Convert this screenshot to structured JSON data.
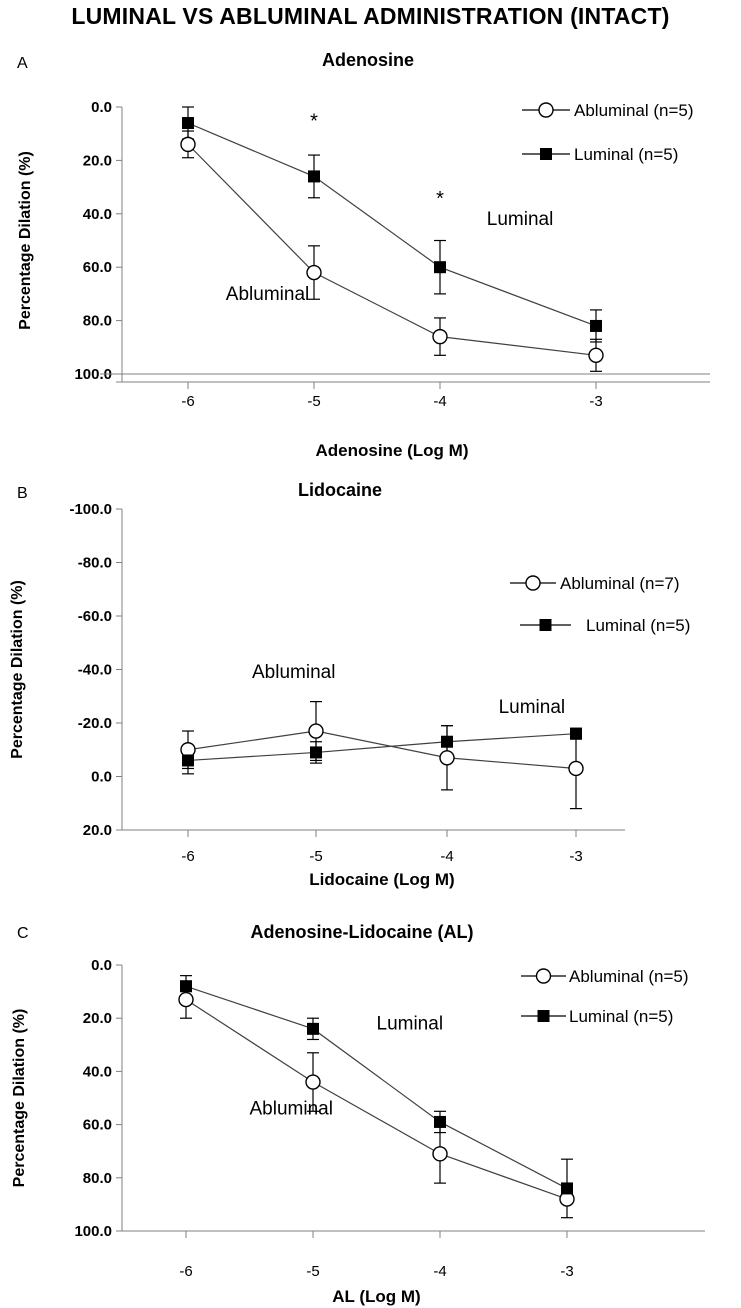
{
  "page_title": "LUMINAL VS ABLUMINAL ADMINISTRATION (INTACT)",
  "colors": {
    "line": "#404040",
    "axis": "#000000",
    "marker_fill_luminal": "#000000",
    "marker_fill_abluminal": "#ffffff"
  },
  "chart_data": [
    {
      "panel_label": "A",
      "type": "line",
      "title": "Adenosine",
      "xlabel": "Adenosine (Log M)",
      "ylabel": "Percentage Dilation (%)",
      "x": [
        -6,
        -5,
        -4,
        -3
      ],
      "x_tick_labels": [
        "-6",
        "-5",
        "-4",
        "-3"
      ],
      "y_tick_labels": [
        "0.0",
        "20.0",
        "40.0",
        "60.0",
        "80.0",
        "100.0"
      ],
      "ylim": [
        0,
        100
      ],
      "y_inverted": true,
      "legend_position": "top-right",
      "series": [
        {
          "name": "Abluminal (n=5)",
          "marker": "open-circle",
          "values": [
            14,
            62,
            86,
            93
          ],
          "errors": [
            5,
            10,
            7,
            6
          ]
        },
        {
          "name": "Luminal (n=5)",
          "marker": "filled-square",
          "values": [
            6,
            26,
            60,
            82
          ],
          "errors": [
            6,
            8,
            10,
            6
          ]
        }
      ],
      "annotations": [
        {
          "text": "*",
          "x": -5,
          "y": 4
        },
        {
          "text": "*",
          "x": -4,
          "y": 33
        },
        {
          "text": "Luminal",
          "x": -3.7,
          "y": 42
        },
        {
          "text": "Abluminal",
          "x": -5.7,
          "y": 70
        }
      ]
    },
    {
      "panel_label": "B",
      "type": "line",
      "title": "Lidocaine",
      "xlabel": "Lidocaine (Log M)",
      "ylabel": "Percentage Dilation (%)",
      "x": [
        -6,
        -5,
        -4,
        -3
      ],
      "x_tick_labels": [
        "-6",
        "-5",
        "-4",
        "-3"
      ],
      "y_tick_labels": [
        "-100.0",
        "-80.0",
        "-60.0",
        "-40.0",
        "-20.0",
        "0.0",
        "20.0"
      ],
      "ylim": [
        -100,
        20
      ],
      "y_inverted": false,
      "legend_position": "right",
      "series": [
        {
          "name": "Abluminal (n=7)",
          "marker": "open-circle",
          "values": [
            -10,
            -17,
            -7,
            -3
          ],
          "errors": [
            7,
            11,
            12,
            15
          ]
        },
        {
          "name": "Luminal (n=5)",
          "marker": "filled-square",
          "values": [
            -6,
            -9,
            -13,
            -16
          ],
          "errors": [
            5,
            4,
            6,
            2
          ]
        }
      ],
      "annotations": [
        {
          "text": "Abluminal",
          "x": -5.5,
          "y": -39
        },
        {
          "text": "Luminal",
          "x": -3.6,
          "y": -26
        }
      ]
    },
    {
      "panel_label": "C",
      "type": "line",
      "title": "Adenosine-Lidocaine (AL)",
      "xlabel": "AL (Log M)",
      "ylabel": "Percentage Dilation (%)",
      "x": [
        -6,
        -5,
        -4,
        -3
      ],
      "x_tick_labels": [
        "-6",
        "-5",
        "-4",
        "-3"
      ],
      "y_tick_labels": [
        "0.0",
        "20.0",
        "40.0",
        "60.0",
        "80.0",
        "100.0"
      ],
      "ylim": [
        0,
        100
      ],
      "y_inverted": true,
      "legend_position": "top-right",
      "series": [
        {
          "name": "Abluminal (n=5)",
          "marker": "open-circle",
          "values": [
            13,
            44,
            71,
            88
          ],
          "errors": [
            7,
            11,
            11,
            0
          ]
        },
        {
          "name": "Luminal (n=5)",
          "marker": "filled-square",
          "values": [
            8,
            24,
            59,
            84
          ],
          "errors": [
            4,
            4,
            4,
            11
          ]
        }
      ],
      "annotations": [
        {
          "text": "Luminal",
          "x": -4.5,
          "y": 22
        },
        {
          "text": "Abluminal",
          "x": -5.5,
          "y": 54
        }
      ]
    }
  ]
}
